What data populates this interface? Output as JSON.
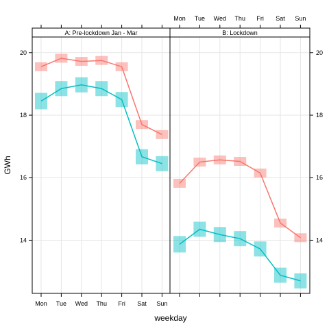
{
  "chart_data": {
    "type": "line",
    "xlabel": "weekday",
    "ylabel": "GWh",
    "ylim": [
      12.3,
      20.5
    ],
    "yticks": [
      14,
      16,
      18,
      20
    ],
    "grid": true,
    "colors": {
      "series_a": "#f8766d",
      "series_b": "#00bfc4"
    },
    "panels": [
      {
        "strip": "A: Pre-lockdown Jan - Mar",
        "categories": [
          "Mon",
          "Tue",
          "Wed",
          "Thu",
          "Fri",
          "Sat",
          "Sun"
        ],
        "series": [
          {
            "color": "#f8766d",
            "values": [
              19.55,
              19.82,
              19.72,
              19.75,
              19.55,
              17.7,
              17.38
            ]
          },
          {
            "color": "#00bfc4",
            "values": [
              18.45,
              18.85,
              18.97,
              18.85,
              18.5,
              16.67,
              16.45
            ]
          }
        ]
      },
      {
        "strip": "B: Lockdown",
        "categories": [
          "Mon",
          "Tue",
          "Wed",
          "Thu",
          "Fri",
          "Sat",
          "Sun"
        ],
        "series": [
          {
            "color": "#f8766d",
            "values": [
              15.82,
              16.5,
              16.57,
              16.52,
              16.15,
              14.55,
              14.08
            ]
          },
          {
            "color": "#00bfc4",
            "values": [
              13.87,
              14.35,
              14.18,
              14.05,
              13.72,
              12.88,
              12.7
            ]
          }
        ]
      }
    ]
  }
}
